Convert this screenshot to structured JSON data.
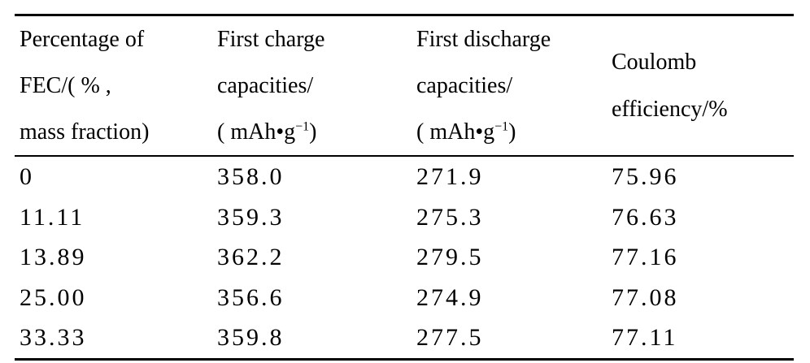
{
  "table": {
    "headers": [
      {
        "lines": [
          "Percentage of",
          "FEC/( % ,",
          "mass fraction)"
        ]
      },
      {
        "lines": [
          "First charge",
          "capacities/",
          "( mAh•g"
        ],
        "unit_sup": "−1",
        "unit_close": ")"
      },
      {
        "lines": [
          "First discharge",
          "capacities/",
          "( mAh•g"
        ],
        "unit_sup": "−1",
        "unit_close": ")"
      },
      {
        "lines": [
          "Coulomb",
          "efficiency/%"
        ]
      }
    ],
    "rows": [
      [
        "0",
        "358.0",
        "271.9",
        "75.96"
      ],
      [
        "11.11",
        "359.3",
        "275.3",
        "76.63"
      ],
      [
        "13.89",
        "362.2",
        "279.5",
        "77.16"
      ],
      [
        "25.00",
        "356.6",
        "274.9",
        "77.08"
      ],
      [
        "33.33",
        "359.8",
        "277.5",
        "77.11"
      ]
    ]
  }
}
